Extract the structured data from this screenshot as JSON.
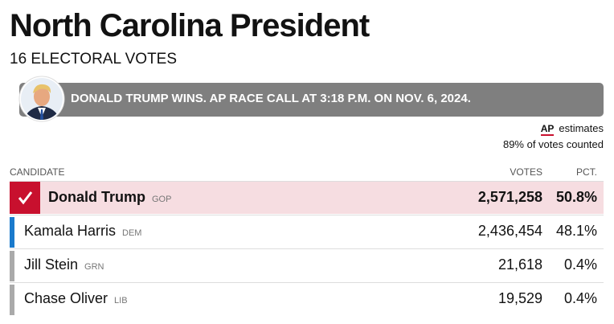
{
  "header": {
    "title": "North Carolina President",
    "subtitle": "16 ELECTORAL VOTES"
  },
  "banner": {
    "text": "DONALD TRUMP WINS. AP RACE CALL AT 3:18 P.M. ON NOV. 6, 2024."
  },
  "source": {
    "logo": "AP",
    "estimates": "estimates",
    "counted": "89% of votes counted"
  },
  "table": {
    "columns": [
      "CANDIDATE",
      "VOTES",
      "PCT."
    ],
    "rows": [
      [
        "Donald Trump",
        "GOP",
        "2,571,258",
        "50.8%"
      ],
      [
        "Kamala Harris",
        "DEM",
        "2,436,454",
        "48.1%"
      ],
      [
        "Jill Stein",
        "GRN",
        "21,618",
        "0.4%"
      ],
      [
        "Chase Oliver",
        "LIB",
        "19,529",
        "0.4%"
      ]
    ]
  }
}
